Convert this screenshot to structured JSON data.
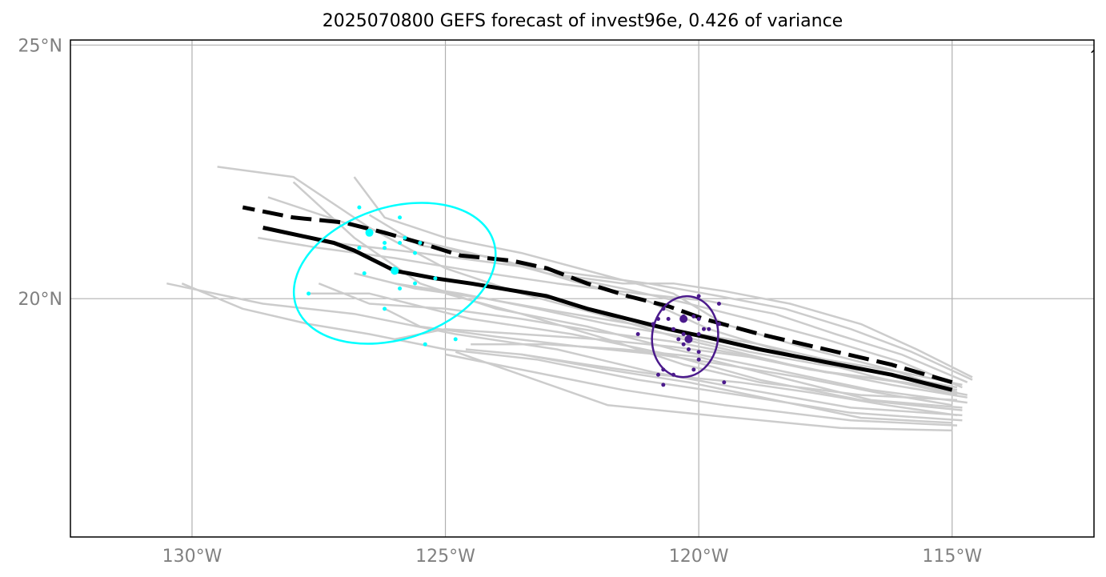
{
  "title": "2025070800 GEFS forecast of invest96e, 0.426 of variance",
  "map": {
    "lon_range": [
      -132.4,
      -112.2
    ],
    "lat_range": [
      15.3,
      25.1
    ],
    "grid": true,
    "lon_ticks": [
      {
        "value": -130,
        "label": "130°W"
      },
      {
        "value": -125,
        "label": "125°W"
      },
      {
        "value": -120,
        "label": "120°W"
      },
      {
        "value": -115,
        "label": "115°W"
      }
    ],
    "lat_ticks": [
      {
        "value": 25,
        "label": "25°N"
      },
      {
        "value": 20,
        "label": "20°N"
      }
    ],
    "colors": {
      "ensemble_member": "#cccccc",
      "mean_track": "#000000",
      "early_cluster": "#00ffff",
      "late_cluster": "#4b1a8c",
      "grid": "#b0b0b0",
      "tick_label": "#808080",
      "coastline": "#000000"
    },
    "coastline": [
      [
        -112.25,
        24.85
      ],
      [
        -112.15,
        24.95
      ]
    ],
    "mean_track_solid": [
      [
        -115.0,
        18.2
      ],
      [
        -116.2,
        18.5
      ],
      [
        -117.5,
        18.75
      ],
      [
        -118.8,
        19.0
      ],
      [
        -119.9,
        19.25
      ],
      [
        -120.6,
        19.4
      ],
      [
        -121.4,
        19.6
      ],
      [
        -122.2,
        19.8
      ],
      [
        -123.0,
        20.05
      ],
      [
        -124.5,
        20.3
      ],
      [
        -125.2,
        20.4
      ],
      [
        -126.0,
        20.55
      ],
      [
        -126.8,
        20.95
      ],
      [
        -127.2,
        21.1
      ],
      [
        -128.6,
        21.4
      ]
    ],
    "mean_track_dashed": [
      [
        -115.0,
        18.35
      ],
      [
        -116.2,
        18.7
      ],
      [
        -117.5,
        19.0
      ],
      [
        -118.8,
        19.3
      ],
      [
        -119.9,
        19.6
      ],
      [
        -120.6,
        19.85
      ],
      [
        -121.4,
        20.05
      ],
      [
        -122.2,
        20.3
      ],
      [
        -123.0,
        20.6
      ],
      [
        -123.7,
        20.75
      ],
      [
        -124.7,
        20.85
      ],
      [
        -125.5,
        21.1
      ],
      [
        -126.2,
        21.3
      ],
      [
        -127.0,
        21.5
      ],
      [
        -128.0,
        21.6
      ],
      [
        -129.0,
        21.8
      ]
    ],
    "ensemble_tracks": [
      [
        [
          -114.7,
          18.05
        ],
        [
          -116.2,
          18.3
        ],
        [
          -118.2,
          18.7
        ],
        [
          -120.3,
          19.2
        ],
        [
          -122.0,
          19.7
        ],
        [
          -123.5,
          20.1
        ],
        [
          -125.0,
          20.6
        ],
        [
          -126.5,
          21.4
        ],
        [
          -128.0,
          22.4
        ],
        [
          -129.5,
          22.6
        ]
      ],
      [
        [
          -114.7,
          17.95
        ],
        [
          -116.6,
          18.2
        ],
        [
          -118.5,
          18.6
        ],
        [
          -120.5,
          19.0
        ],
        [
          -122.2,
          19.45
        ],
        [
          -124.0,
          19.8
        ],
        [
          -125.5,
          20.3
        ],
        [
          -126.8,
          21.2
        ],
        [
          -128.0,
          22.3
        ]
      ],
      [
        [
          -114.8,
          17.8
        ],
        [
          -116.8,
          18.0
        ],
        [
          -118.8,
          18.4
        ],
        [
          -120.6,
          18.9
        ],
        [
          -122.5,
          19.3
        ],
        [
          -124.5,
          19.6
        ],
        [
          -126.5,
          20.1
        ],
        [
          -127.7,
          20.1
        ]
      ],
      [
        [
          -114.8,
          17.7
        ],
        [
          -117.0,
          17.85
        ],
        [
          -119.0,
          18.2
        ],
        [
          -120.9,
          18.55
        ],
        [
          -122.8,
          19.0
        ],
        [
          -124.8,
          19.3
        ],
        [
          -126.8,
          19.7
        ],
        [
          -128.6,
          19.9
        ],
        [
          -130.5,
          20.3
        ]
      ],
      [
        [
          -114.8,
          17.6
        ],
        [
          -117.0,
          17.75
        ],
        [
          -119.2,
          18.1
        ],
        [
          -121.2,
          18.4
        ],
        [
          -123.2,
          18.8
        ],
        [
          -125.0,
          19.0
        ],
        [
          -126.5,
          19.3
        ],
        [
          -127.7,
          19.5
        ],
        [
          -129.0,
          19.8
        ],
        [
          -130.2,
          20.3
        ]
      ],
      [
        [
          -114.9,
          17.5
        ],
        [
          -117.0,
          17.6
        ],
        [
          -119.5,
          17.9
        ],
        [
          -121.5,
          18.2
        ],
        [
          -123.5,
          18.6
        ],
        [
          -125.0,
          18.9
        ]
      ],
      [
        [
          -115.0,
          17.4
        ],
        [
          -117.2,
          17.45
        ],
        [
          -119.8,
          17.7
        ],
        [
          -121.8,
          17.9
        ],
        [
          -124.8,
          18.95
        ]
      ],
      [
        [
          -114.9,
          18.1
        ],
        [
          -116.5,
          18.45
        ],
        [
          -118.0,
          18.85
        ],
        [
          -119.8,
          19.4
        ],
        [
          -121.0,
          19.95
        ],
        [
          -122.5,
          20.35
        ],
        [
          -124.0,
          20.8
        ],
        [
          -125.5,
          21.05
        ],
        [
          -126.5,
          21.65
        ]
      ],
      [
        [
          -114.9,
          18.15
        ],
        [
          -116.2,
          18.6
        ],
        [
          -117.8,
          19.0
        ],
        [
          -119.5,
          19.5
        ],
        [
          -120.5,
          20.1
        ],
        [
          -122.0,
          20.5
        ],
        [
          -123.5,
          20.9
        ],
        [
          -125.0,
          21.2
        ],
        [
          -126.2,
          21.6
        ],
        [
          -126.8,
          22.4
        ]
      ],
      [
        [
          -114.8,
          18.25
        ],
        [
          -116.0,
          18.75
        ],
        [
          -117.5,
          19.2
        ],
        [
          -119.0,
          19.6
        ],
        [
          -120.2,
          19.9
        ],
        [
          -121.5,
          20.2
        ],
        [
          -123.0,
          20.5
        ],
        [
          -124.5,
          20.9
        ],
        [
          -125.8,
          21.2
        ],
        [
          -127.0,
          21.5
        ],
        [
          -128.5,
          22.0
        ]
      ],
      [
        [
          -114.7,
          18.35
        ],
        [
          -116.0,
          18.9
        ],
        [
          -117.3,
          19.3
        ],
        [
          -118.5,
          19.7
        ],
        [
          -119.8,
          19.95
        ],
        [
          -121.2,
          20.1
        ],
        [
          -122.8,
          20.3
        ],
        [
          -124.5,
          20.55
        ],
        [
          -126.0,
          20.8
        ],
        [
          -127.5,
          21.0
        ],
        [
          -128.7,
          21.2
        ]
      ],
      [
        [
          -114.6,
          18.4
        ],
        [
          -115.8,
          18.95
        ],
        [
          -117.0,
          19.4
        ],
        [
          -118.3,
          19.8
        ],
        [
          -119.6,
          20.05
        ],
        [
          -121.0,
          20.3
        ],
        [
          -122.5,
          20.5
        ],
        [
          -124.0,
          20.7
        ],
        [
          -125.5,
          20.9
        ],
        [
          -127.2,
          21.1
        ]
      ],
      [
        [
          -114.6,
          18.45
        ],
        [
          -115.7,
          19.0
        ],
        [
          -116.8,
          19.5
        ],
        [
          -118.2,
          19.9
        ],
        [
          -119.5,
          20.15
        ],
        [
          -120.5,
          20.3
        ],
        [
          -121.5,
          20.3
        ],
        [
          -123.0,
          20.5
        ]
      ],
      [
        [
          -114.9,
          18.0
        ],
        [
          -116.8,
          18.1
        ],
        [
          -118.8,
          18.35
        ],
        [
          -120.3,
          18.7
        ],
        [
          -121.8,
          19.2
        ],
        [
          -123.5,
          19.7
        ],
        [
          -125.0,
          20.1
        ]
      ],
      [
        [
          -114.8,
          17.85
        ],
        [
          -116.6,
          18.0
        ],
        [
          -118.2,
          18.4
        ],
        [
          -120.0,
          18.85
        ],
        [
          -121.5,
          19.0
        ],
        [
          -123.0,
          19.1
        ],
        [
          -124.5,
          19.1
        ]
      ],
      [
        [
          -115.0,
          17.55
        ],
        [
          -116.8,
          17.65
        ],
        [
          -118.5,
          18.0
        ],
        [
          -120.2,
          18.35
        ],
        [
          -121.8,
          18.6
        ],
        [
          -123.5,
          18.9
        ],
        [
          -124.6,
          19.0
        ]
      ],
      [
        [
          -114.9,
          18.2
        ],
        [
          -116.3,
          18.4
        ],
        [
          -117.8,
          18.6
        ],
        [
          -119.2,
          18.9
        ],
        [
          -120.5,
          19.15
        ],
        [
          -122.0,
          19.35
        ],
        [
          -123.5,
          19.6
        ],
        [
          -125.0,
          19.8
        ],
        [
          -126.5,
          19.9
        ],
        [
          -127.5,
          20.3
        ]
      ],
      [
        [
          -114.8,
          18.3
        ],
        [
          -116.0,
          18.55
        ],
        [
          -117.5,
          18.8
        ],
        [
          -118.8,
          19.1
        ],
        [
          -120.0,
          19.3
        ],
        [
          -121.3,
          19.5
        ],
        [
          -122.8,
          19.75
        ],
        [
          -124.2,
          20.0
        ],
        [
          -125.6,
          20.2
        ],
        [
          -126.8,
          20.5
        ]
      ],
      [
        [
          -115.0,
          17.9
        ],
        [
          -116.5,
          18.15
        ],
        [
          -118.0,
          18.45
        ],
        [
          -119.5,
          18.7
        ],
        [
          -120.8,
          18.9
        ],
        [
          -122.3,
          19.05
        ],
        [
          -124.0,
          19.25
        ],
        [
          -125.5,
          19.45
        ],
        [
          -126.2,
          19.8
        ]
      ],
      [
        [
          -114.9,
          17.7
        ],
        [
          -116.3,
          17.9
        ],
        [
          -117.8,
          18.15
        ],
        [
          -119.2,
          18.35
        ],
        [
          -120.8,
          18.5
        ],
        [
          -122.2,
          18.7
        ],
        [
          -123.5,
          18.9
        ]
      ],
      [
        [
          -114.7,
          18.1
        ],
        [
          -116.0,
          18.35
        ],
        [
          -117.5,
          18.55
        ],
        [
          -119.0,
          18.85
        ],
        [
          -120.5,
          19.05
        ],
        [
          -122.0,
          19.2
        ],
        [
          -123.5,
          19.3
        ],
        [
          -125.0,
          19.4
        ],
        [
          -126.0,
          19.2
        ]
      ],
      [
        [
          -114.9,
          18.25
        ],
        [
          -116.2,
          18.5
        ],
        [
          -117.6,
          18.7
        ],
        [
          -119.0,
          18.95
        ],
        [
          -120.3,
          19.25
        ],
        [
          -121.8,
          19.5
        ],
        [
          -123.2,
          19.8
        ],
        [
          -124.7,
          20.1
        ],
        [
          -126.0,
          20.3
        ]
      ]
    ],
    "early_cluster_points": [
      [
        -126.7,
        21.8
      ],
      [
        -126.5,
        21.3
      ],
      [
        -126.2,
        21.1
      ],
      [
        -125.9,
        21.1
      ],
      [
        -125.8,
        21.2
      ],
      [
        -125.6,
        20.9
      ],
      [
        -125.5,
        21.1
      ],
      [
        -126.2,
        21.0
      ],
      [
        -126.7,
        21.0
      ],
      [
        -126.6,
        20.5
      ],
      [
        -125.9,
        20.2
      ],
      [
        -125.6,
        20.3
      ],
      [
        -125.2,
        20.4
      ],
      [
        -126.2,
        19.8
      ],
      [
        -127.7,
        20.1
      ],
      [
        -125.4,
        19.1
      ],
      [
        -124.8,
        19.2
      ],
      [
        -125.9,
        21.6
      ]
    ],
    "early_cluster_markers": [
      [
        -126.5,
        21.3
      ],
      [
        -126.0,
        20.55
      ]
    ],
    "early_cluster_ellipse": {
      "center": [
        -126.0,
        20.5
      ],
      "semi_lon": 2.05,
      "semi_lat": 1.3,
      "angle": -18
    },
    "late_cluster_points": [
      [
        -120.3,
        19.65
      ],
      [
        -120.1,
        19.65
      ],
      [
        -120.0,
        19.6
      ],
      [
        -120.6,
        19.6
      ],
      [
        -120.8,
        19.6
      ],
      [
        -120.7,
        19.8
      ],
      [
        -120.0,
        20.05
      ],
      [
        -119.6,
        19.9
      ],
      [
        -119.9,
        19.4
      ],
      [
        -120.0,
        19.3
      ],
      [
        -120.2,
        19.25
      ],
      [
        -120.4,
        19.2
      ],
      [
        -120.3,
        19.1
      ],
      [
        -120.0,
        18.95
      ],
      [
        -120.0,
        18.8
      ],
      [
        -120.1,
        18.6
      ],
      [
        -120.5,
        18.5
      ],
      [
        -120.7,
        18.6
      ],
      [
        -120.8,
        18.5
      ],
      [
        -120.7,
        18.3
      ],
      [
        -119.5,
        18.35
      ],
      [
        -121.2,
        19.3
      ],
      [
        -120.9,
        19.5
      ],
      [
        -120.5,
        19.4
      ],
      [
        -119.8,
        19.4
      ],
      [
        -119.6,
        19.5
      ],
      [
        -120.3,
        19.3
      ],
      [
        -120.2,
        19.0
      ]
    ],
    "late_cluster_markers": [
      [
        -120.3,
        19.6
      ],
      [
        -120.2,
        19.2
      ]
    ],
    "late_cluster_ellipse": {
      "center": [
        -120.27,
        19.25
      ],
      "semi_lon": 0.65,
      "semi_lat": 0.8,
      "angle": 8
    }
  }
}
